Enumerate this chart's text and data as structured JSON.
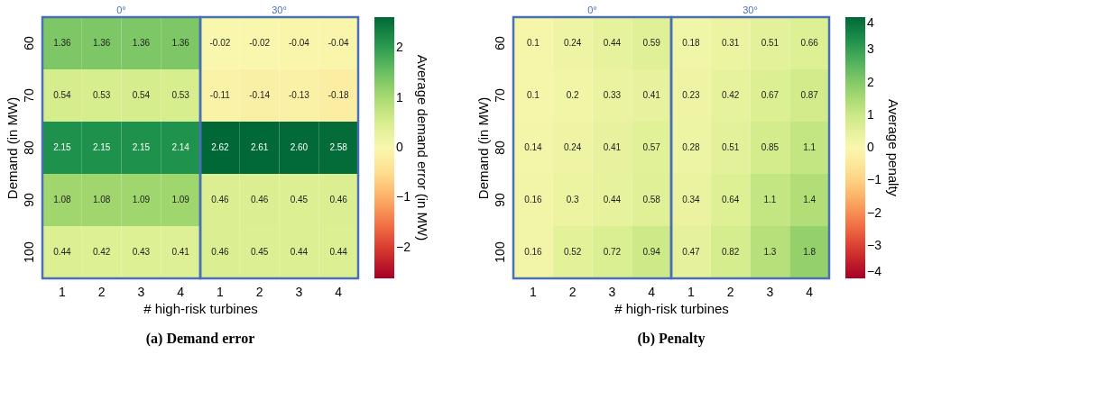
{
  "chart_data": [
    {
      "type": "heatmap",
      "title": "(a) Demand error",
      "xlabel": "# high-risk turbines",
      "ylabel": "Demand (in MW)",
      "clabel": "Average demand error (in MW)",
      "data_labels": true,
      "categories": [
        "1",
        "2",
        "3",
        "4",
        "1",
        "2",
        "3",
        "4"
      ],
      "y_categories": [
        "60",
        "70",
        "80",
        "90",
        "100"
      ],
      "cells": [
        [
          1.36,
          1.36,
          1.36,
          1.36,
          -0.02,
          -0.02,
          -0.04,
          -0.04
        ],
        [
          0.54,
          0.53,
          0.54,
          0.53,
          -0.11,
          -0.14,
          -0.13,
          -0.18
        ],
        [
          2.15,
          2.15,
          2.15,
          2.14,
          2.62,
          2.61,
          2.6,
          2.58
        ],
        [
          1.08,
          1.08,
          1.09,
          1.09,
          0.46,
          0.46,
          0.45,
          0.46
        ],
        [
          0.44,
          0.42,
          0.43,
          0.41,
          0.46,
          0.45,
          0.44,
          0.44
        ]
      ],
      "cell_labels": [
        [
          "1.36",
          "1.36",
          "1.36",
          "1.36",
          "-0.02",
          "-0.02",
          "-0.04",
          "-0.04"
        ],
        [
          "0.54",
          "0.53",
          "0.54",
          "0.53",
          "-0.11",
          "-0.14",
          "-0.13",
          "-0.18"
        ],
        [
          "2.15",
          "2.15",
          "2.15",
          "2.14",
          "2.62",
          "2.61",
          "2.60",
          "2.58"
        ],
        [
          "1.08",
          "1.08",
          "1.09",
          "1.09",
          "0.46",
          "0.46",
          "0.45",
          "0.46"
        ],
        [
          "0.44",
          "0.42",
          "0.43",
          "0.41",
          "0.46",
          "0.45",
          "0.44",
          "0.44"
        ]
      ],
      "clim": [
        -2.62,
        2.62
      ],
      "cticks": [
        -2,
        -1,
        0,
        1,
        2
      ],
      "annotations": [
        "0°",
        "30°"
      ]
    },
    {
      "type": "heatmap",
      "title": "(b) Penalty",
      "xlabel": "# high-risk turbines",
      "ylabel": "Demand (in MW)",
      "clabel": "Average penalty",
      "data_labels": true,
      "categories": [
        "1",
        "2",
        "3",
        "4",
        "1",
        "2",
        "3",
        "4"
      ],
      "y_categories": [
        "60",
        "70",
        "80",
        "90",
        "100"
      ],
      "cells": [
        [
          0.1,
          0.24,
          0.44,
          0.59,
          0.18,
          0.31,
          0.51,
          0.66
        ],
        [
          0.1,
          0.2,
          0.33,
          0.41,
          0.23,
          0.42,
          0.67,
          0.87
        ],
        [
          0.14,
          0.24,
          0.41,
          0.57,
          0.28,
          0.51,
          0.85,
          1.1
        ],
        [
          0.16,
          0.3,
          0.44,
          0.58,
          0.34,
          0.64,
          1.1,
          1.4
        ],
        [
          0.16,
          0.52,
          0.72,
          0.94,
          0.47,
          0.82,
          1.3,
          1.8
        ]
      ],
      "clim": [
        -4,
        4
      ],
      "cticks": [
        -4,
        -3,
        -2,
        -1,
        0,
        1,
        2,
        3,
        4
      ],
      "annotations": [
        "0°",
        "30°"
      ]
    }
  ]
}
